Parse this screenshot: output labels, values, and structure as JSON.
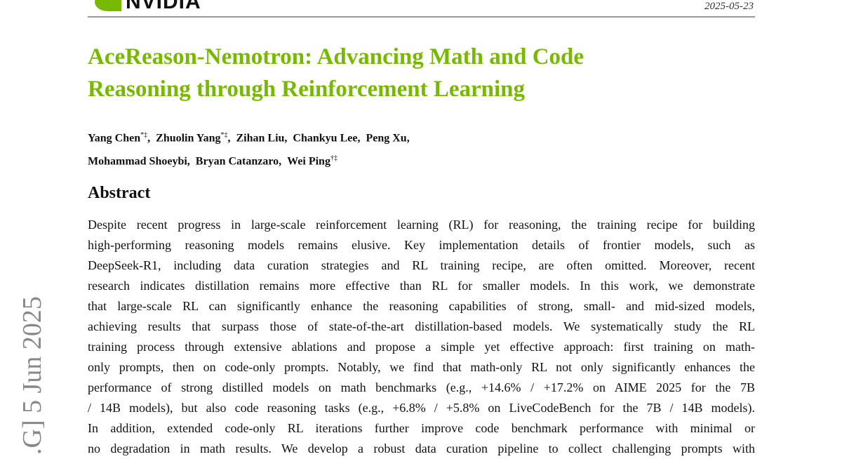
{
  "header": {
    "logo_text": "NVIDIA",
    "date": "2025-05-23",
    "accent_color": "#76b900"
  },
  "title": [
    "AceReason-Nemotron: Advancing Math and Code",
    "Reasoning through Reinforcement Learning"
  ],
  "authors": {
    "line1": [
      {
        "name": "Yang Chen",
        "mark": "*‡"
      },
      {
        "name": "Zhuolin Yang",
        "mark": "*‡"
      },
      {
        "name": "Zihan Liu",
        "mark": ""
      },
      {
        "name": "Chankyu Lee",
        "mark": ""
      },
      {
        "name": "Peng Xu",
        "mark": ""
      }
    ],
    "line2": [
      {
        "name": "Mohammad Shoeybi",
        "mark": ""
      },
      {
        "name": "Bryan Catanzaro",
        "mark": ""
      },
      {
        "name": "Wei Ping",
        "mark": "†‡"
      }
    ]
  },
  "abstract": {
    "heading": "Abstract",
    "lines": [
      "Despite recent progress in large-scale reinforcement learning (RL) for reasoning, the training recipe for building",
      "high-performing reasoning models remains elusive. Key implementation details of frontier models, such as",
      "DeepSeek-R1, including data curation strategies and RL training recipe, are often omitted. Moreover, recent",
      "research indicates distillation remains more effective than RL for smaller models. In this work, we demonstrate",
      "that large-scale RL can significantly enhance the reasoning capabilities of strong, small- and mid-sized models,",
      "achieving results that surpass those of state-of-the-art distillation-based models. We systematically study the RL",
      "training process through extensive ablations and propose a simple yet effective approach: first training on math-",
      "only prompts, then on code-only prompts. Notably, we find that math-only RL not only significantly enhances the",
      "performance of strong distilled models on math benchmarks (e.g., +14.6% / +17.2% on AIME 2025 for the 7B",
      "/ 14B models), but also code reasoning tasks (e.g., +6.8% / +5.8% on LiveCodeBench for the 7B / 14B models).",
      "In addition, extended code-only RL iterations further improve code benchmark performance with minimal or",
      "no degradation in math results. We develop a robust data curation pipeline to collect challenging prompts with"
    ]
  },
  "side_stamp": ".G]  5 Jun 2025"
}
